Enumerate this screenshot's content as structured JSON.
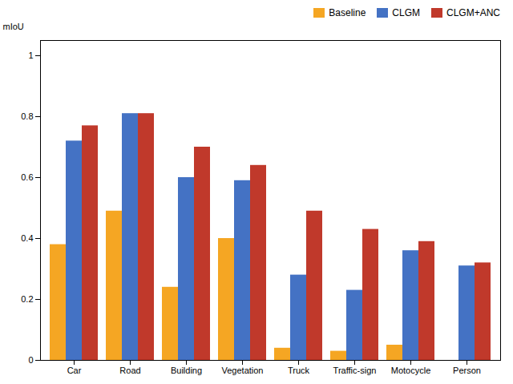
{
  "chart_data": {
    "type": "bar",
    "categories": [
      "Car",
      "Road",
      "Building",
      "Vegetation",
      "Truck",
      "Traffic-sign",
      "Motocycle",
      "Person"
    ],
    "series": [
      {
        "name": "Baseline",
        "color": "#F5A623",
        "values": [
          0.38,
          0.49,
          0.24,
          0.4,
          0.04,
          0.03,
          0.05,
          0.0
        ]
      },
      {
        "name": "CLGM",
        "color": "#4472C4",
        "values": [
          0.72,
          0.81,
          0.6,
          0.59,
          0.28,
          0.23,
          0.36,
          0.31
        ]
      },
      {
        "name": "CLGM+ANC",
        "color": "#C0392B",
        "values": [
          0.77,
          0.81,
          0.7,
          0.64,
          0.49,
          0.43,
          0.39,
          0.32
        ]
      }
    ],
    "ylabel": "mIoU",
    "ylim": [
      0,
      1.05
    ],
    "yticks": [
      0,
      0.2,
      0.4,
      0.6,
      0.8,
      1
    ],
    "grid": false,
    "legend": "upper right"
  }
}
